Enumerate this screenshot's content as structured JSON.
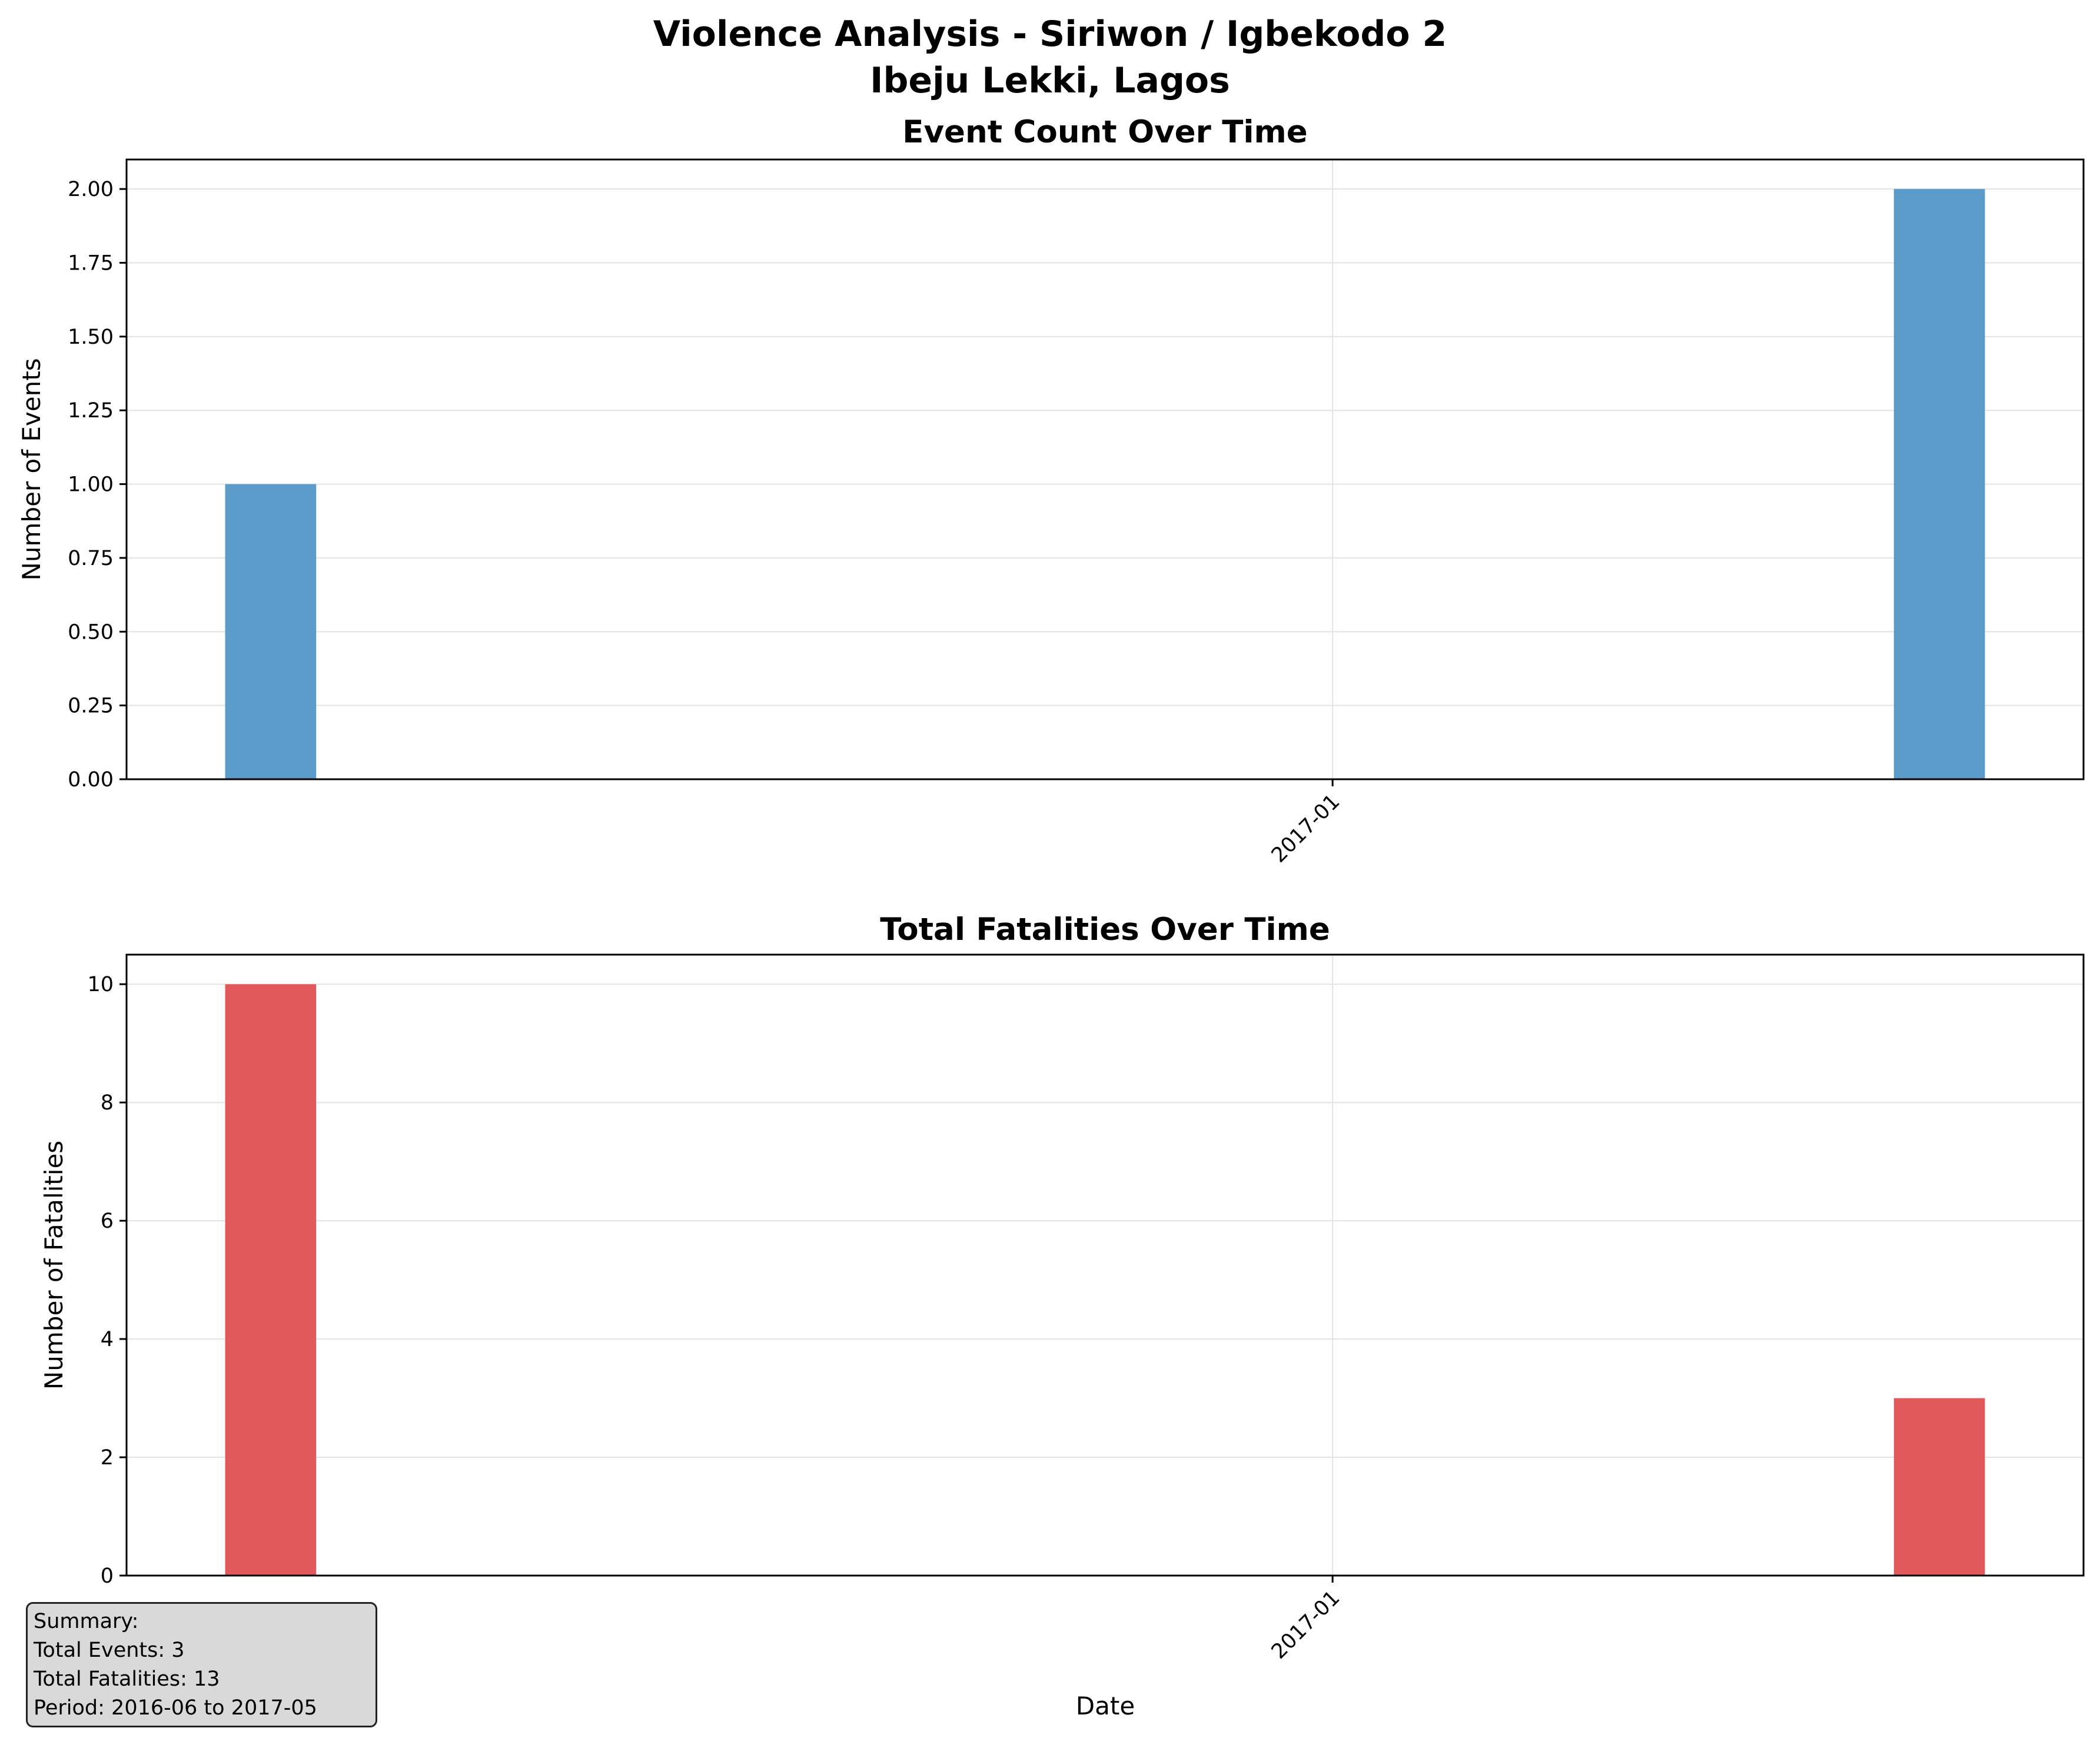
{
  "figure": {
    "title_line1": "Violence Analysis - Siriwon /  Igbekodo 2",
    "title_line2": "Ibeju Lekki, Lagos"
  },
  "chart_data": [
    {
      "type": "bar",
      "title": "Event Count Over Time",
      "xlabel": "",
      "ylabel": "Number of Events",
      "x": [
        "2016-06",
        "2017-05"
      ],
      "values": [
        1,
        2
      ],
      "color": "#5b9bc9",
      "ylim": [
        0,
        2.1
      ],
      "yticks": [
        "0.00",
        "0.25",
        "0.50",
        "0.75",
        "1.00",
        "1.25",
        "1.50",
        "1.75",
        "2.00"
      ],
      "xtick_labels": [
        "2017-01"
      ],
      "grid": true
    },
    {
      "type": "bar",
      "title": "Total Fatalities Over Time",
      "xlabel": "Date",
      "ylabel": "Number of Fatalities",
      "x": [
        "2016-06",
        "2017-05"
      ],
      "values": [
        10,
        3
      ],
      "color": "#e05a5c",
      "ylim": [
        0,
        10.5
      ],
      "yticks": [
        "0",
        "2",
        "4",
        "6",
        "8",
        "10"
      ],
      "xtick_labels": [
        "2017-01"
      ],
      "grid": true
    }
  ],
  "summary": {
    "heading": "Summary:",
    "events": "Total Events: 3",
    "fatalities": "Total Fatalities: 13",
    "period": "Period: 2016-06 to 2017-05"
  }
}
